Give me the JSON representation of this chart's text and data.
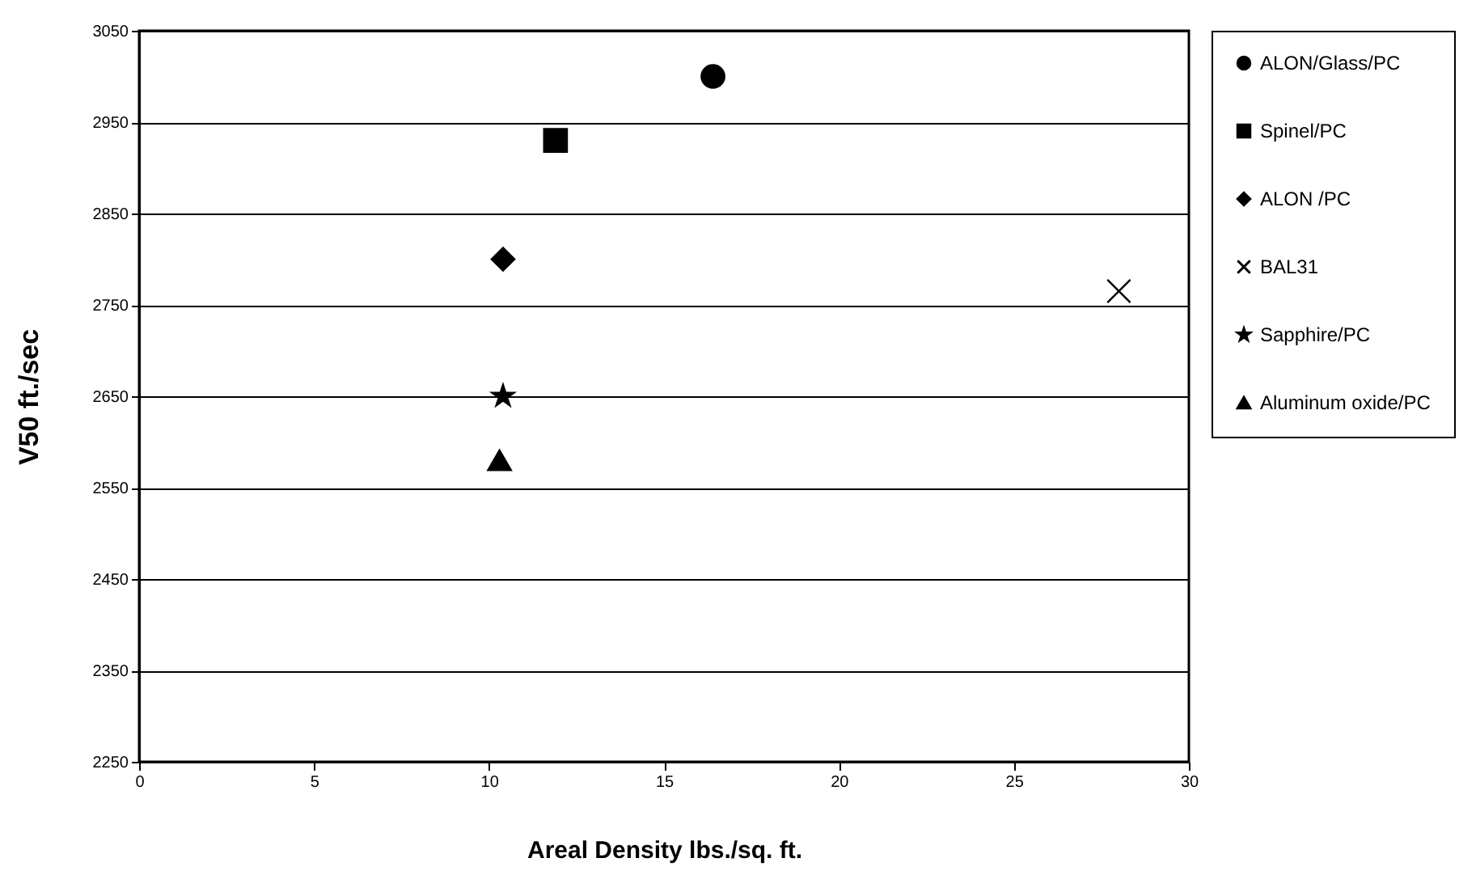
{
  "chart_data": {
    "type": "scatter",
    "xlabel": "Areal Density lbs./sq. ft.",
    "ylabel": "V50 ft./sec",
    "xlim": [
      0,
      30
    ],
    "xticks": [
      0,
      5,
      10,
      15,
      20,
      25,
      30
    ],
    "ylim": [
      2250,
      3050
    ],
    "yticks": [
      2250,
      2350,
      2450,
      2550,
      2650,
      2750,
      2850,
      2950,
      3050
    ],
    "grid": "y",
    "legend": "right",
    "series": [
      {
        "name": "ALON/Glass/PC",
        "color": "#000000",
        "marker": "circle",
        "x": [
          16.4
        ],
        "values": [
          3000
        ]
      },
      {
        "name": "Spinel/PC",
        "color": "#000000",
        "marker": "square",
        "x": [
          11.9
        ],
        "values": [
          2930
        ]
      },
      {
        "name": "ALON /PC",
        "color": "#000000",
        "marker": "diamond",
        "x": [
          10.4
        ],
        "values": [
          2800
        ]
      },
      {
        "name": "BAL31",
        "color": "#000000",
        "marker": "cross",
        "x": [
          28
        ],
        "values": [
          2765
        ]
      },
      {
        "name": "Sapphire/PC",
        "color": "#000000",
        "marker": "star",
        "x": [
          10.4
        ],
        "values": [
          2650
        ]
      },
      {
        "name": "Aluminum oxide/PC",
        "color": "#000000",
        "marker": "triangle",
        "x": [
          10.3
        ],
        "values": [
          2580
        ]
      }
    ]
  }
}
